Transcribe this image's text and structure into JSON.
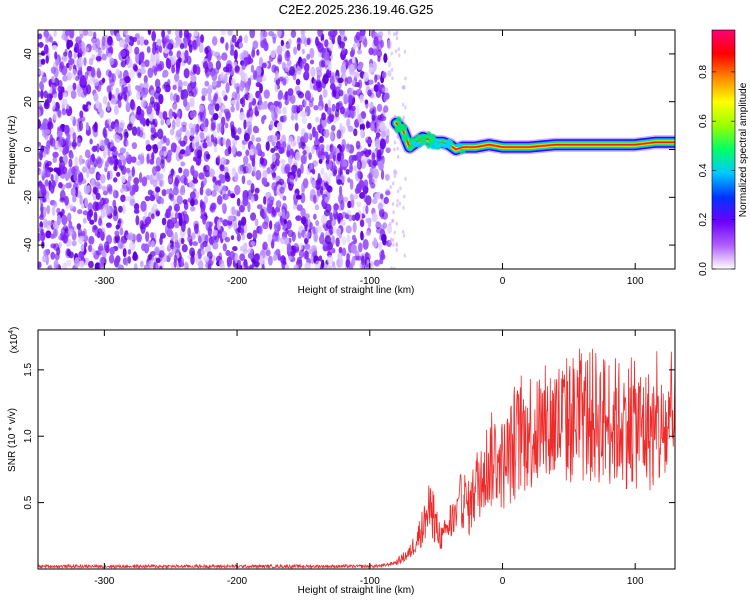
{
  "title": "C2E2.2025.236.19.46.G25",
  "chart_data": [
    {
      "type": "heatmap",
      "id": "spectrogram",
      "xlabel": "Height of straight line (km)",
      "ylabel": "Frequency (Hz)",
      "xlim": [
        -350,
        130
      ],
      "ylim": [
        -50,
        50
      ],
      "xticks": [
        -300,
        -200,
        -100,
        0,
        100
      ],
      "yticks": [
        -40,
        -20,
        0,
        20,
        40
      ],
      "noise_region": [
        -350,
        -85
      ],
      "carrier_track": [
        {
          "x": -80,
          "y": 11
        },
        {
          "x": -75,
          "y": 8
        },
        {
          "x": -70,
          "y": 1
        },
        {
          "x": -65,
          "y": 3
        },
        {
          "x": -60,
          "y": 5
        },
        {
          "x": -55,
          "y": 4
        },
        {
          "x": -50,
          "y": 3
        },
        {
          "x": -45,
          "y": 3
        },
        {
          "x": -40,
          "y": 2
        },
        {
          "x": -35,
          "y": 0
        },
        {
          "x": -30,
          "y": 1
        },
        {
          "x": -20,
          "y": 1
        },
        {
          "x": -10,
          "y": 2
        },
        {
          "x": 0,
          "y": 1
        },
        {
          "x": 20,
          "y": 1
        },
        {
          "x": 40,
          "y": 2
        },
        {
          "x": 60,
          "y": 2
        },
        {
          "x": 80,
          "y": 2
        },
        {
          "x": 100,
          "y": 2
        },
        {
          "x": 115,
          "y": 3
        },
        {
          "x": 130,
          "y": 3
        }
      ],
      "colorbar": {
        "label": "Normalized spectral amplitude",
        "range": [
          0.0,
          0.97
        ],
        "ticks": [
          "0.0",
          "0.2",
          "0.4",
          "0.6",
          "0.8"
        ],
        "tick_values": [
          0.0,
          0.2,
          0.4,
          0.6,
          0.8
        ],
        "colors": [
          "#ffffff",
          "#b05cff",
          "#6a00ff",
          "#0033ff",
          "#00c8ff",
          "#00ff66",
          "#9aff00",
          "#ffff00",
          "#ff8800",
          "#ff0000",
          "#ff0077"
        ]
      }
    },
    {
      "type": "line",
      "id": "snr",
      "xlabel": "Height of straight line (km)",
      "ylabel": "SNR (10 * v/v)",
      "scale_label": "(x10",
      "scale_exp": "4",
      "scale_close": ")",
      "xlim": [
        -350,
        130
      ],
      "ylim": [
        0.0,
        1.8
      ],
      "xticks": [
        -300,
        -200,
        -100,
        0,
        100
      ],
      "yticks": [
        "0.5",
        "1.0",
        "1.5"
      ],
      "ytick_values": [
        0.5,
        1.0,
        1.5
      ],
      "line_color": "#ee2b2b",
      "envelope": {
        "x": [
          -350,
          -110,
          -100,
          -90,
          -80,
          -70,
          -60,
          -55,
          -50,
          -45,
          -40,
          -35,
          -30,
          -25,
          -20,
          -15,
          -10,
          -5,
          0,
          5,
          10,
          20,
          30,
          40,
          50,
          60,
          70,
          80,
          90,
          100,
          110,
          120,
          130
        ],
        "values": [
          0.02,
          0.02,
          0.02,
          0.025,
          0.05,
          0.12,
          0.32,
          0.45,
          0.32,
          0.22,
          0.35,
          0.38,
          0.55,
          0.45,
          0.62,
          0.72,
          0.8,
          0.85,
          0.78,
          0.85,
          0.95,
          1.05,
          1.05,
          1.1,
          1.12,
          1.15,
          1.15,
          1.12,
          1.1,
          1.08,
          1.05,
          1.02,
          1.05
        ]
      }
    }
  ]
}
